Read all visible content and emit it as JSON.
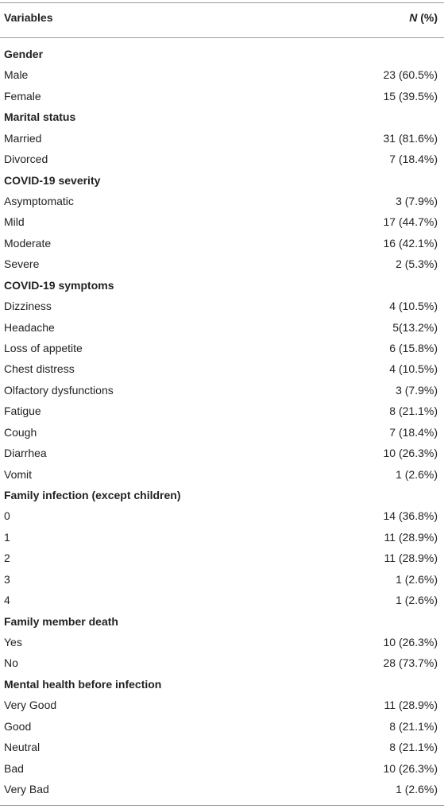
{
  "table": {
    "header": {
      "variable": "Variables",
      "n_symbol": "N",
      "n_suffix": "(%)"
    },
    "sections": [
      {
        "title": "Gender",
        "rows": [
          [
            "Male",
            "23 (60.5%)"
          ],
          [
            "Female",
            "15 (39.5%)"
          ]
        ]
      },
      {
        "title": "Marital status",
        "rows": [
          [
            "Married",
            "31 (81.6%)"
          ],
          [
            "Divorced",
            "7 (18.4%)"
          ]
        ]
      },
      {
        "title": "COVID-19 severity",
        "rows": [
          [
            "Asymptomatic",
            "3 (7.9%)"
          ],
          [
            "Mild",
            "17 (44.7%)"
          ],
          [
            "Moderate",
            "16 (42.1%)"
          ],
          [
            "Severe",
            "2 (5.3%)"
          ]
        ]
      },
      {
        "title": "COVID-19 symptoms",
        "rows": [
          [
            "Dizziness",
            "4 (10.5%)"
          ],
          [
            "Headache",
            "5(13.2%)"
          ],
          [
            "Loss of appetite",
            "6 (15.8%)"
          ],
          [
            "Chest distress",
            "4 (10.5%)"
          ],
          [
            "Olfactory dysfunctions",
            "3 (7.9%)"
          ],
          [
            "Fatigue",
            "8 (21.1%)"
          ],
          [
            "Cough",
            "7 (18.4%)"
          ],
          [
            "Diarrhea",
            "10 (26.3%)"
          ],
          [
            "Vomit",
            "1 (2.6%)"
          ]
        ]
      },
      {
        "title": "Family infection (except children)",
        "rows": [
          [
            "0",
            "14 (36.8%)"
          ],
          [
            "1",
            "11 (28.9%)"
          ],
          [
            "2",
            "11 (28.9%)"
          ],
          [
            "3",
            "1 (2.6%)"
          ],
          [
            "4",
            "1 (2.6%)"
          ]
        ]
      },
      {
        "title": "Family member death",
        "rows": [
          [
            "Yes",
            "10 (26.3%)"
          ],
          [
            "No",
            "28 (73.7%)"
          ]
        ]
      },
      {
        "title": "Mental health before infection",
        "rows": [
          [
            "Very Good",
            "11 (28.9%)"
          ],
          [
            "Good",
            "8 (21.1%)"
          ],
          [
            "Neutral",
            "8 (21.1%)"
          ],
          [
            "Bad",
            "10 (26.3%)"
          ],
          [
            "Very Bad",
            "1 (2.6%)"
          ]
        ]
      }
    ]
  }
}
